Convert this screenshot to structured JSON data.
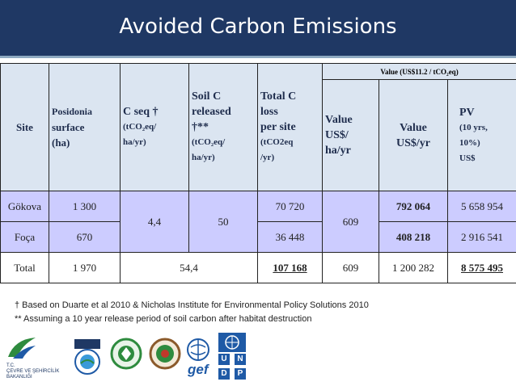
{
  "slide": {
    "title": "Avoided Carbon Emissions"
  },
  "table": {
    "super_header": "Value (US$11.2 / tCO₂eq)",
    "headers": {
      "site": "Site",
      "posidonia_1": "Posidonia",
      "posidonia_2": "surface",
      "posidonia_3": "(ha)",
      "cseq_1": "C seq †",
      "cseq_2": "(tCO₂eq/",
      "cseq_3": "ha/yr)",
      "soil_1": "Soil C",
      "soil_2": "released",
      "soil_3": "†**",
      "soil_4": "(tCO₂eq/",
      "soil_5": "ha/yr)",
      "total_1": "Total C",
      "total_2": "loss",
      "total_3": "per site",
      "total_4": "(tCO2eq",
      "total_5": "/yr)",
      "value_ha_1": "Value",
      "value_ha_2": "US$/",
      "value_ha_3": "ha/yr",
      "value_yr_1": "Value",
      "value_yr_2": "US$/yr",
      "pv_1": "PV",
      "pv_2": "(10 yrs,",
      "pv_3": "10%)",
      "pv_4": "US$"
    },
    "rows": [
      {
        "site": "Gökova",
        "surface": "1 300",
        "total_c": "70 720",
        "value_yr": "792 064",
        "pv": "5 658 954"
      },
      {
        "site": "Foça",
        "surface": "670",
        "total_c": "36 448",
        "value_yr": "408 218",
        "pv": "2 916 541"
      }
    ],
    "merged": {
      "cseq": "4,4",
      "soil": "50",
      "value_ha": "609"
    },
    "total_row": {
      "site": "Total",
      "surface": "1 970",
      "combined": "54,4",
      "total_c": "107 168",
      "value_ha": "609",
      "value_yr": "1 200 282",
      "pv": "8 575 495"
    }
  },
  "notes": {
    "note_1": "† Based on Duarte et al 2010 & Nicholas Institute for Environmental Policy Solutions 2010",
    "note_2": "** Assuming a 10 year release period of soil carbon after habitat destruction"
  },
  "logos": {
    "ministry_1": "T.C.",
    "ministry_2": "ÇEVRE VE ŞEHİRCİLİK",
    "ministry_3": "BAKANLIĞI",
    "gef": "gef",
    "undp": [
      "U",
      "N",
      "D",
      "P"
    ],
    "colors": {
      "navy": "#1f3864",
      "undp_blue": "#1f5aa6",
      "green": "#2e8b3e"
    }
  }
}
